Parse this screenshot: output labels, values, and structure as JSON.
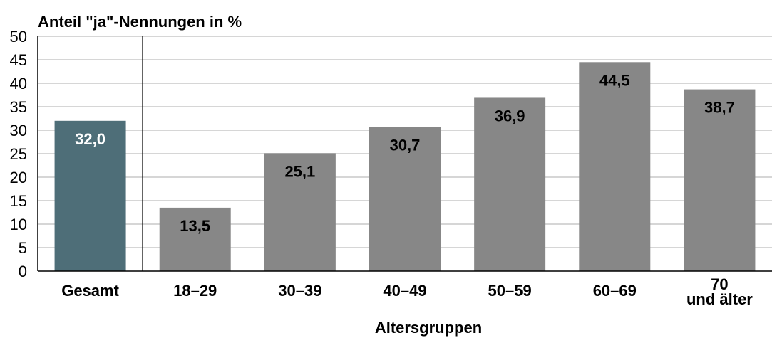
{
  "chart_data": {
    "type": "bar",
    "title": "Anteil \"ja\"-Nennungen in %",
    "xlabel": "Altersgruppen",
    "ylabel": "",
    "ylim": [
      0,
      50
    ],
    "yticks": [
      "0",
      "5",
      "10",
      "15",
      "20",
      "25",
      "30",
      "35",
      "40",
      "45",
      "50"
    ],
    "grid": true,
    "categories": [
      [
        "Gesamt"
      ],
      [
        "18–29"
      ],
      [
        "30–39"
      ],
      [
        "40–49"
      ],
      [
        "50–59"
      ],
      [
        "60–69"
      ],
      [
        "70",
        "und älter"
      ]
    ],
    "values": [
      32.0,
      13.5,
      25.1,
      30.7,
      36.9,
      44.5,
      38.7
    ],
    "value_labels": [
      "32,0",
      "13,5",
      "25,1",
      "30,7",
      "36,9",
      "44,5",
      "38,7"
    ],
    "colors": {
      "total_bar": "#4e6e78",
      "group_bar": "#878787",
      "total_label": "#ffffff",
      "group_label": "#000000",
      "grid": "#c8c8c8",
      "axis": "#000000"
    }
  }
}
